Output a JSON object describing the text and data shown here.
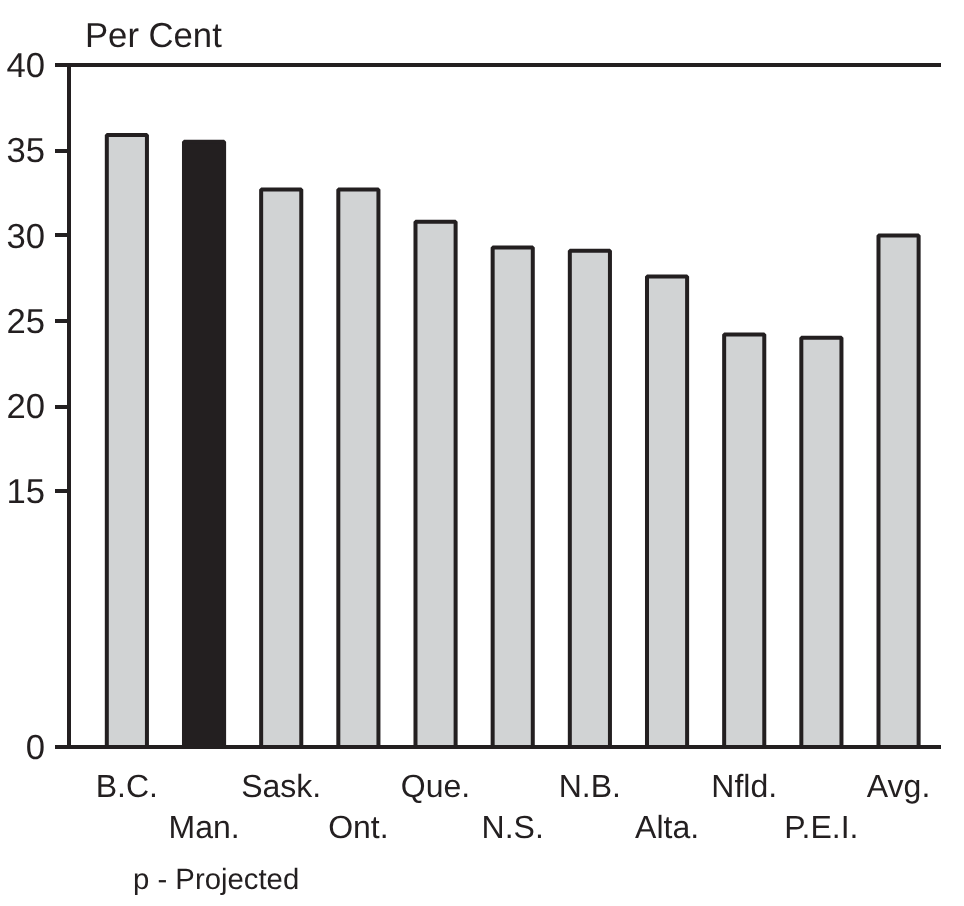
{
  "chart_data": {
    "type": "bar",
    "ylabel": "Per Cent",
    "categories": [
      "B.C.",
      "Man.",
      "Sask.",
      "Ont.",
      "Que.",
      "N.S.",
      "N.B.",
      "Alta.",
      "Nfld.",
      "P.E.I.",
      "Avg."
    ],
    "values": [
      35.9,
      35.5,
      32.7,
      32.7,
      30.8,
      29.3,
      29.1,
      27.6,
      24.2,
      24.0,
      30.0
    ],
    "colors": [
      "#d1d3d4",
      "#231f20",
      "#d1d3d4",
      "#d1d3d4",
      "#d1d3d4",
      "#d1d3d4",
      "#d1d3d4",
      "#d1d3d4",
      "#d1d3d4",
      "#d1d3d4",
      "#d1d3d4"
    ],
    "ylim": [
      0,
      40
    ],
    "yticks": [
      0,
      15,
      20,
      25,
      30,
      35,
      40
    ],
    "grid": false,
    "annotations": [
      "p - Projected"
    ]
  }
}
